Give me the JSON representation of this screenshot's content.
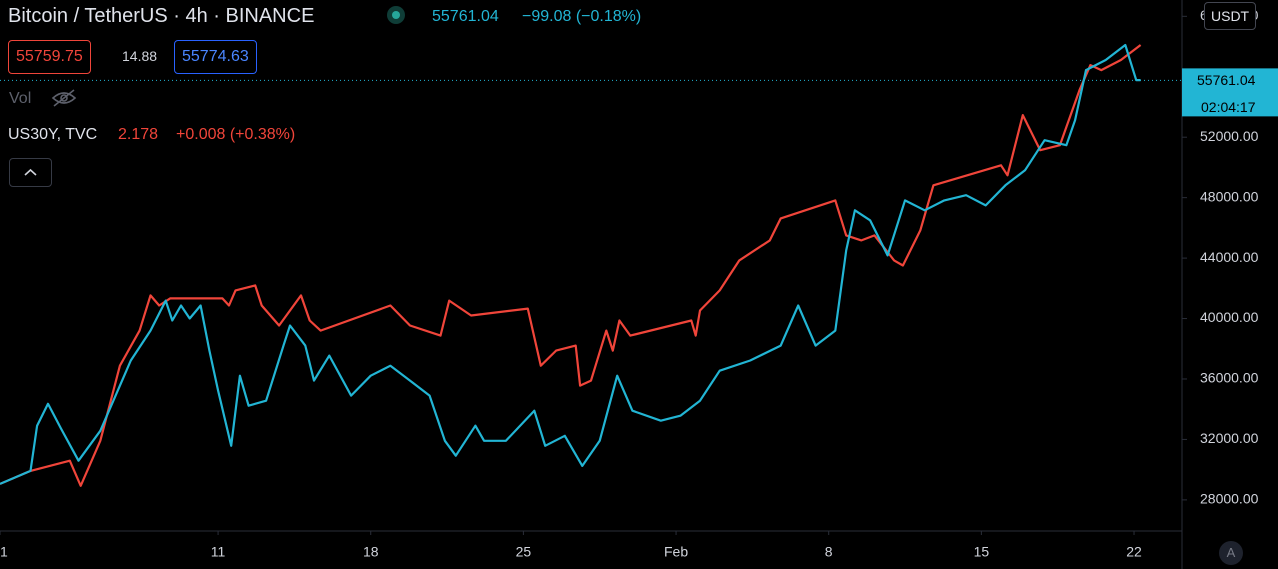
{
  "header": {
    "symbol": "Bitcoin / TetherUS · 4h · BINANCE",
    "change": "−99.08 (−0.18%)",
    "bid": "55759.75",
    "spread": "14.88",
    "ask": "55774.63",
    "vol_label": "Vol",
    "compare_symbol": "US30Y, TVC",
    "compare_price": "2.178",
    "compare_change": "+0.008 (+0.38%)",
    "currency": "USDT",
    "countdown": "02:04:17",
    "auto": "A"
  },
  "chart_data": {
    "type": "line",
    "last_price": 55761.04,
    "grid": false,
    "xlim": [
      0,
      54.2
    ],
    "ylim": [
      25940,
      61080
    ],
    "xticks": [
      {
        "value": 0,
        "label": "21"
      },
      {
        "value": 10,
        "label": "11"
      },
      {
        "value": 17,
        "label": "18"
      },
      {
        "value": 24,
        "label": "25"
      },
      {
        "value": 31,
        "label": "Feb"
      },
      {
        "value": 38,
        "label": "8"
      },
      {
        "value": 45,
        "label": "15"
      },
      {
        "value": 52,
        "label": "22"
      }
    ],
    "yticks": [
      {
        "value": 28000,
        "label": "28000.00"
      },
      {
        "value": 32000,
        "label": "32000.00"
      },
      {
        "value": 36000,
        "label": "36000.00"
      },
      {
        "value": 40000,
        "label": "40000.00"
      },
      {
        "value": 44000,
        "label": "44000.00"
      },
      {
        "value": 48000,
        "label": "48000.00"
      },
      {
        "value": 52000,
        "label": "52000.00"
      },
      {
        "value": 56000,
        "label": "56000.00"
      },
      {
        "value": 60000,
        "label": "60000.00"
      }
    ],
    "series": [
      {
        "name": "US30Y",
        "color": "#f0453a",
        "x": [
          0,
          1.4,
          3.2,
          3.7,
          4.6,
          5.5,
          6.4,
          6.9,
          7.3,
          7.8,
          10.2,
          10.5,
          10.8,
          11.7,
          12.0,
          12.8,
          13.8,
          14.2,
          14.7,
          17.9,
          18.8,
          20.2,
          20.6,
          21.6,
          24.2,
          24.8,
          25.5,
          26.4,
          26.6,
          27.1,
          27.8,
          28.1,
          28.4,
          28.9,
          31.7,
          31.9,
          32.1,
          33.0,
          33.9,
          35.3,
          35.8,
          38.3,
          38.8,
          39.5,
          40.1,
          41.0,
          41.4,
          42.2,
          42.8,
          45.9,
          46.2,
          46.9,
          47.7,
          48.6,
          49.5,
          50.0,
          50.5,
          51.4,
          52.3
        ],
        "values": [
          29060,
          29920,
          30590,
          28930,
          31910,
          36880,
          39200,
          41530,
          40860,
          41330,
          41330,
          40860,
          41860,
          42190,
          40860,
          39540,
          41530,
          39870,
          39200,
          40860,
          39540,
          38870,
          41190,
          40200,
          40660,
          36880,
          37880,
          38210,
          35560,
          35890,
          39200,
          37880,
          39870,
          38870,
          39870,
          38870,
          40530,
          41860,
          43850,
          45170,
          46630,
          47820,
          45500,
          45170,
          45500,
          43850,
          43510,
          45830,
          48820,
          50140,
          49480,
          53460,
          51140,
          51470,
          55120,
          56770,
          56440,
          57110,
          58100
        ]
      },
      {
        "name": "Bitcoin / TetherUS",
        "color": "#22b5d4",
        "x": [
          0,
          1.4,
          1.7,
          2.2,
          2.8,
          3.6,
          4.6,
          5.3,
          6.0,
          6.9,
          7.6,
          7.9,
          8.3,
          8.7,
          9.2,
          9.6,
          10.0,
          10.6,
          11.0,
          11.4,
          12.2,
          13.0,
          13.3,
          14.0,
          14.4,
          15.1,
          16.1,
          17.0,
          17.9,
          18.8,
          19.7,
          20.4,
          20.9,
          21.8,
          22.2,
          23.2,
          24.5,
          25.0,
          25.9,
          26.7,
          27.5,
          28.3,
          29.0,
          30.3,
          31.2,
          32.1,
          33.0,
          34.4,
          35.8,
          36.6,
          37.4,
          38.3,
          38.8,
          39.2,
          39.9,
          40.7,
          41.5,
          42.4,
          43.3,
          44.3,
          45.2,
          46.1,
          47.0,
          47.9,
          48.9,
          49.3,
          49.8,
          50.7,
          51.6,
          52.1,
          52.3
        ],
        "values": [
          29060,
          29920,
          32910,
          34360,
          32710,
          30590,
          32570,
          34900,
          37220,
          39200,
          41190,
          39870,
          40860,
          40000,
          40860,
          37880,
          35230,
          31580,
          36220,
          34230,
          34560,
          38210,
          39540,
          38210,
          35890,
          37550,
          34900,
          36220,
          36880,
          35890,
          34900,
          31910,
          30920,
          32910,
          31910,
          31910,
          33900,
          31580,
          32240,
          30250,
          31910,
          36220,
          33900,
          33240,
          33570,
          34560,
          36550,
          37220,
          38210,
          40860,
          38210,
          39200,
          44510,
          47160,
          46500,
          44180,
          47820,
          47160,
          47820,
          48160,
          47490,
          48820,
          49810,
          51800,
          51470,
          53130,
          56440,
          57110,
          58100,
          55780,
          55780
        ]
      }
    ]
  }
}
